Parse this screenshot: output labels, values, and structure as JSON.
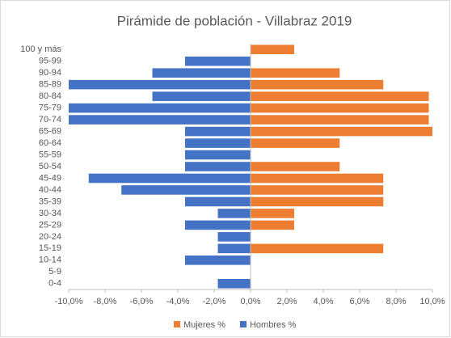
{
  "chart_data": {
    "type": "bar",
    "orientation": "horizontal",
    "title": "Pirámide de población - Villabraz 2019",
    "categories": [
      "100 y más",
      "95-99",
      "90-94",
      "85-89",
      "80-84",
      "75-79",
      "70-74",
      "65-69",
      "60-64",
      "55-59",
      "50-54",
      "45-49",
      "40-44",
      "35-39",
      "30-34",
      "25-29",
      "20-24",
      "15-19",
      "10-14",
      "5-9",
      "0-4"
    ],
    "series": [
      {
        "name": "Mujeres %",
        "color": "#ed7d31",
        "values": [
          2.4,
          0,
          4.9,
          7.3,
          9.8,
          9.8,
          9.8,
          10.0,
          4.9,
          0,
          4.9,
          7.3,
          7.3,
          7.3,
          2.4,
          2.4,
          0,
          7.3,
          0,
          0,
          0
        ]
      },
      {
        "name": "Hombres %",
        "color": "#4472c4",
        "values": [
          0,
          -3.6,
          -5.4,
          -10.0,
          -5.4,
          -10.0,
          -10.0,
          -3.6,
          -3.6,
          -3.6,
          -3.6,
          -8.9,
          -7.1,
          -3.6,
          -1.8,
          -3.6,
          -1.8,
          -1.8,
          -3.6,
          0,
          -1.8
        ]
      }
    ],
    "xlim": [
      -10,
      10
    ],
    "xticks": [
      {
        "value": -10,
        "label": "-10,0%"
      },
      {
        "value": -8,
        "label": "-8,0%"
      },
      {
        "value": -6,
        "label": "-6,0%"
      },
      {
        "value": -4,
        "label": "-4,0%"
      },
      {
        "value": -2,
        "label": "-2,0%"
      },
      {
        "value": 0,
        "label": "0,0%"
      },
      {
        "value": 2,
        "label": "2,0%"
      },
      {
        "value": 4,
        "label": "4,0%"
      },
      {
        "value": 6,
        "label": "6,0%"
      },
      {
        "value": 8,
        "label": "8,0%"
      },
      {
        "value": 10,
        "label": "10,0%"
      }
    ],
    "legend": "bottom"
  }
}
